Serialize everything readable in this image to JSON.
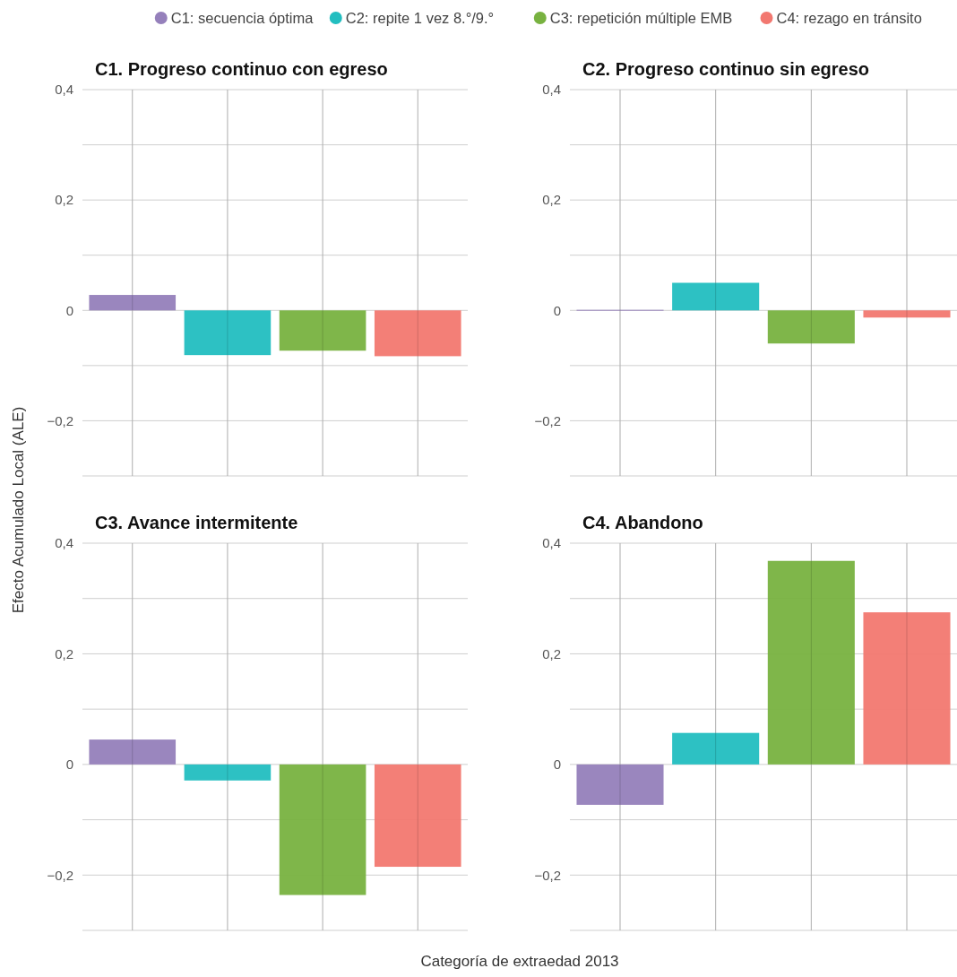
{
  "chart_data": [
    {
      "type": "bar",
      "title": "C1. Progreso continuo con egreso",
      "ylabel": "Efecto Acumulado Local (ALE)",
      "xlabel": "Categoría de extraedad 2013",
      "legend": "top right",
      "grid": true,
      "categories": [
        null,
        null,
        null,
        null
      ],
      "ylim": [
        -0.3,
        0.4
      ],
      "yticks": [
        {
          "value": -0.3,
          "label": null
        },
        {
          "value": -0.2,
          "label": "−0,2"
        },
        {
          "value": -0.1,
          "label": null
        },
        {
          "value": 0,
          "label": "0"
        },
        {
          "value": 0.1,
          "label": null
        },
        {
          "value": 0.2,
          "label": "0,2"
        },
        {
          "value": 0.3,
          "label": null
        },
        {
          "value": 0.4,
          "label": "0,4"
        }
      ],
      "series": [
        {
          "name": "C1: secuencia óptima",
          "color": "#9580bb",
          "values": [
            0.028,
            null,
            null,
            null
          ]
        },
        {
          "name": "C2: repite 1 vez 8.°/9.°",
          "color": "#22bec0",
          "values": [
            null,
            -0.081,
            null,
            null
          ]
        },
        {
          "name": "C3: repetición múltiple EMB",
          "color": "#78b240",
          "values": [
            null,
            null,
            -0.073,
            null
          ]
        },
        {
          "name": "C4: rezago en tránsito",
          "color": "#f27870",
          "values": [
            null,
            null,
            null,
            -0.083
          ]
        }
      ]
    },
    {
      "type": "bar",
      "title": "C2. Progreso continuo sin egreso",
      "grid": true,
      "categories": [
        null,
        null,
        null,
        null
      ],
      "ylim": [
        -0.3,
        0.4
      ],
      "yticks": [
        {
          "value": -0.3,
          "label": null
        },
        {
          "value": -0.2,
          "label": "−0,2"
        },
        {
          "value": -0.1,
          "label": null
        },
        {
          "value": 0,
          "label": "0"
        },
        {
          "value": 0.1,
          "label": null
        },
        {
          "value": 0.2,
          "label": "0,2"
        },
        {
          "value": 0.3,
          "label": null
        },
        {
          "value": 0.4,
          "label": "0,4"
        }
      ],
      "series": [
        {
          "color": "#9580bb",
          "values": [
            0.001,
            null,
            null,
            null
          ]
        },
        {
          "color": "#22bec0",
          "values": [
            null,
            0.05,
            null,
            null
          ]
        },
        {
          "color": "#78b240",
          "values": [
            null,
            null,
            -0.06,
            null
          ]
        },
        {
          "color": "#f27870",
          "values": [
            null,
            null,
            null,
            -0.013
          ]
        }
      ]
    },
    {
      "type": "bar",
      "title": "C3. Avance intermitente",
      "grid": true,
      "categories": [
        null,
        null,
        null,
        null
      ],
      "ylim": [
        -0.3,
        0.4
      ],
      "yticks": [
        {
          "value": -0.3,
          "label": null
        },
        {
          "value": -0.2,
          "label": "−0,2"
        },
        {
          "value": -0.1,
          "label": null
        },
        {
          "value": 0,
          "label": "0"
        },
        {
          "value": 0.1,
          "label": null
        },
        {
          "value": 0.2,
          "label": "0,2"
        },
        {
          "value": 0.3,
          "label": null
        },
        {
          "value": 0.4,
          "label": "0,4"
        }
      ],
      "series": [
        {
          "color": "#9580bb",
          "values": [
            0.045,
            null,
            null,
            null
          ]
        },
        {
          "color": "#22bec0",
          "values": [
            null,
            -0.029,
            null,
            null
          ]
        },
        {
          "color": "#78b240",
          "values": [
            null,
            null,
            -0.236,
            null
          ]
        },
        {
          "color": "#f27870",
          "values": [
            null,
            null,
            null,
            -0.185
          ]
        }
      ]
    },
    {
      "type": "bar",
      "title": "C4. Abandono",
      "grid": true,
      "categories": [
        null,
        null,
        null,
        null
      ],
      "ylim": [
        -0.3,
        0.4
      ],
      "yticks": [
        {
          "value": -0.3,
          "label": null
        },
        {
          "value": -0.2,
          "label": "−0,2"
        },
        {
          "value": -0.1,
          "label": null
        },
        {
          "value": 0,
          "label": "0"
        },
        {
          "value": 0.1,
          "label": null
        },
        {
          "value": 0.2,
          "label": "0,2"
        },
        {
          "value": 0.3,
          "label": null
        },
        {
          "value": 0.4,
          "label": "0,4"
        }
      ],
      "series": [
        {
          "color": "#9580bb",
          "values": [
            -0.073,
            null,
            null,
            null
          ]
        },
        {
          "color": "#22bec0",
          "values": [
            null,
            0.057,
            null,
            null
          ]
        },
        {
          "color": "#78b240",
          "values": [
            null,
            null,
            0.368,
            null
          ]
        },
        {
          "color": "#f27870",
          "values": [
            null,
            null,
            null,
            0.275
          ]
        }
      ]
    }
  ]
}
